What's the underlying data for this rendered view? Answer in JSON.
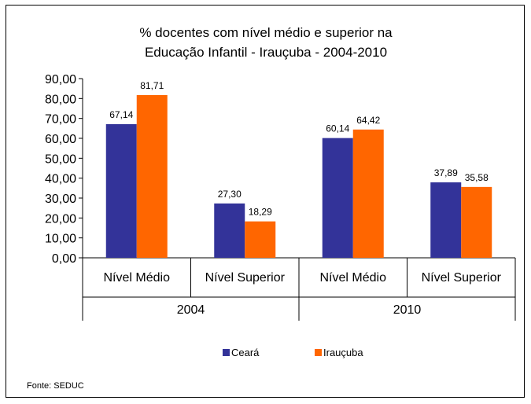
{
  "chart_data": {
    "type": "bar",
    "title_lines": [
      "% docentes com nível médio e superior na",
      "Educação Infantil - Irauçuba - 2004-2010"
    ],
    "groups": [
      "2004",
      "2010"
    ],
    "categories": [
      "Nível Médio",
      "Nível Superior",
      "Nível Médio",
      "Nível Superior"
    ],
    "series": [
      {
        "name": "Ceará",
        "color": "#333399",
        "values": [
          67.14,
          27.3,
          60.14,
          37.89
        ],
        "labels": [
          "67,14",
          "27,30",
          "60,14",
          "37,89"
        ]
      },
      {
        "name": "Irauçuba",
        "color": "#FF6600",
        "values": [
          81.71,
          18.29,
          64.42,
          35.58
        ],
        "labels": [
          "81,71",
          "18,29",
          "64,42",
          "35,58"
        ]
      }
    ],
    "ylim": [
      0,
      90
    ],
    "yticks": [
      0,
      10,
      20,
      30,
      40,
      50,
      60,
      70,
      80,
      90
    ],
    "ytick_labels": [
      "0,00",
      "10,00",
      "20,00",
      "30,00",
      "40,00",
      "50,00",
      "60,00",
      "70,00",
      "80,00",
      "90,00"
    ],
    "grid": false,
    "legend_position": "bottom",
    "source": "Fonte: SEDUC"
  }
}
